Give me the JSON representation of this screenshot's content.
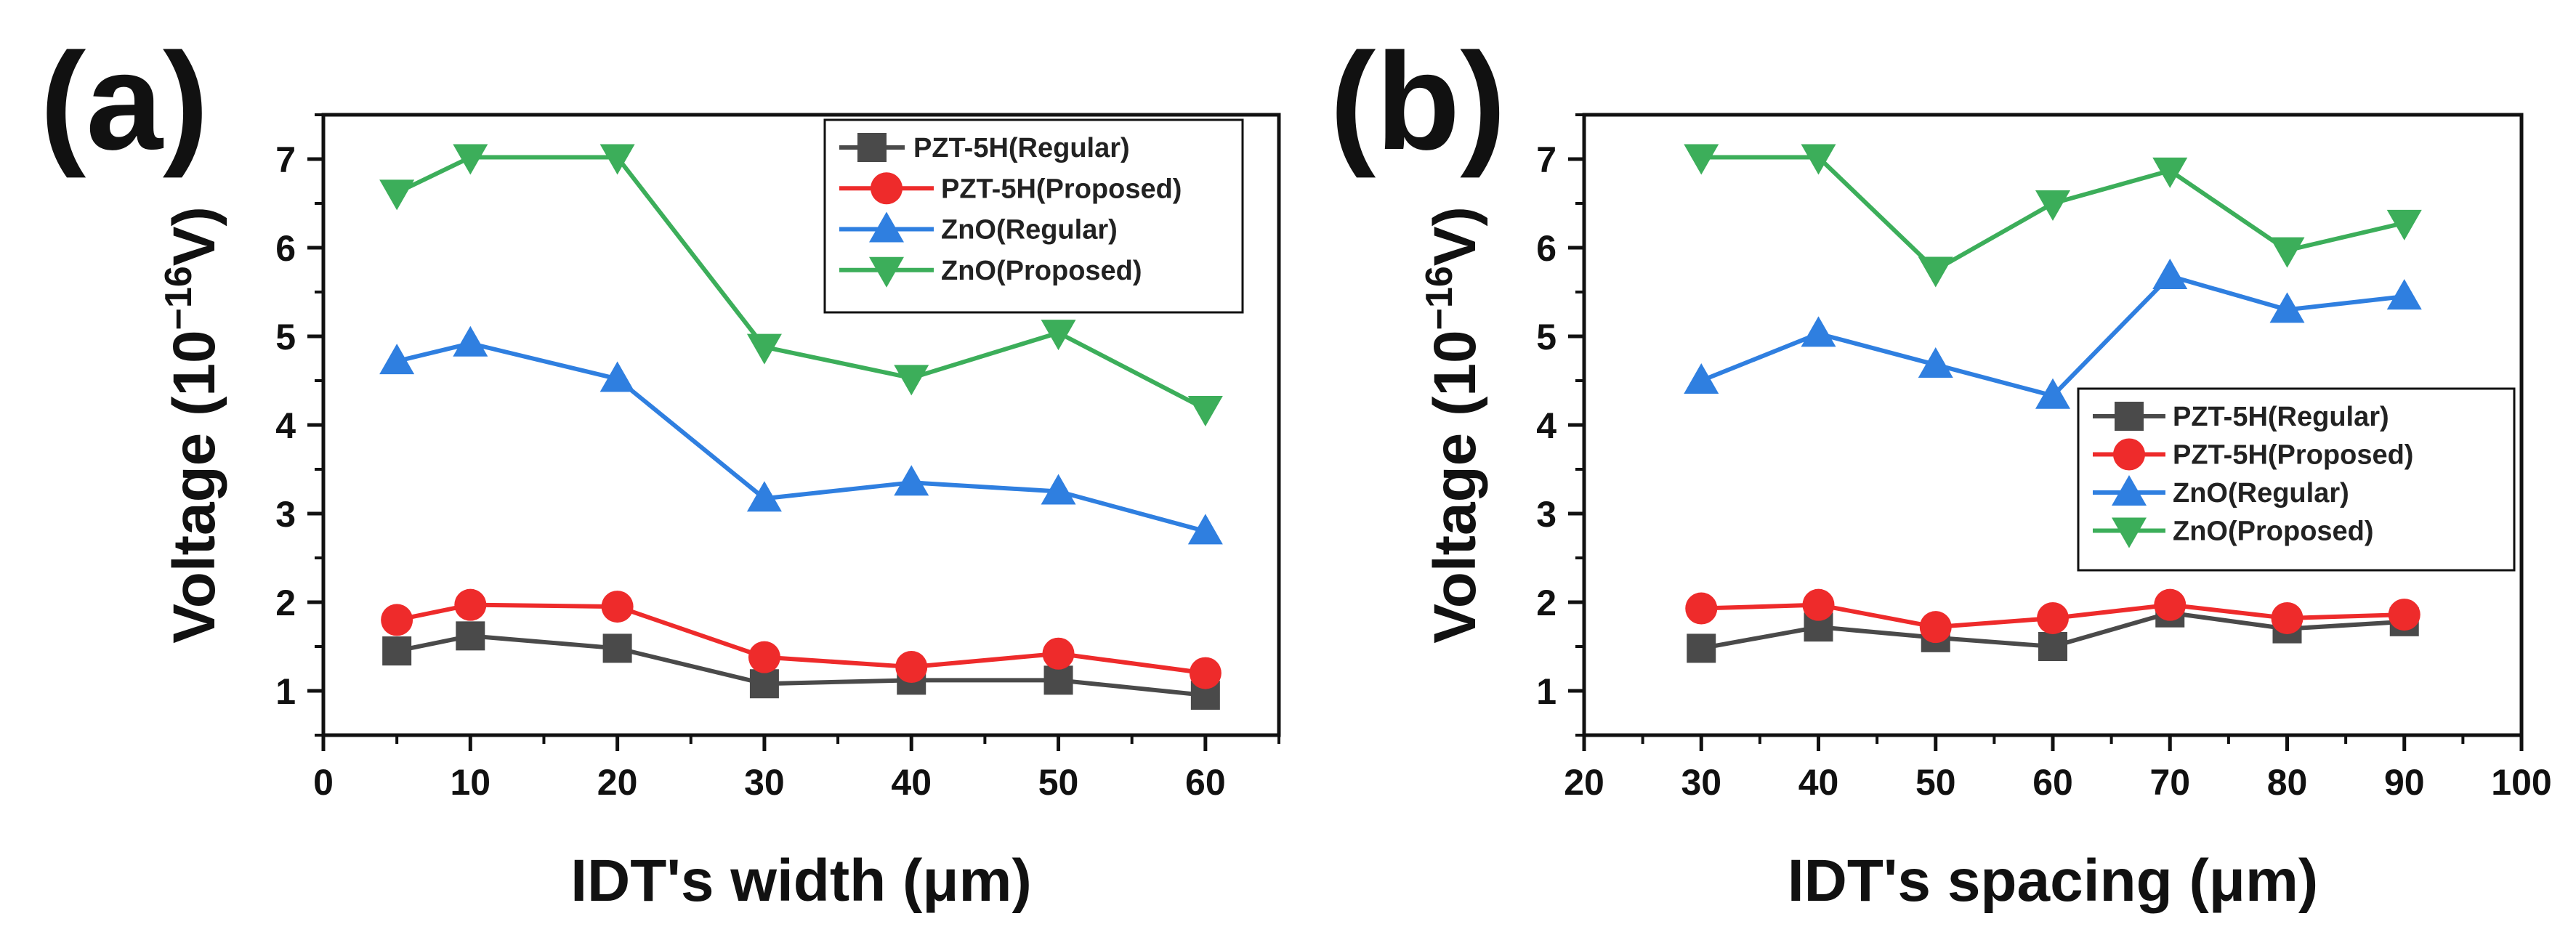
{
  "chart_data": [
    {
      "type": "line",
      "panel_label": "(a)",
      "xlabel": "IDT's width (μm)",
      "ylabel_main": "Voltage (10",
      "ylabel_exp": "−16",
      "ylabel_unit": "V)",
      "xlim": [
        0,
        65
      ],
      "ylim": [
        0.5,
        7.5
      ],
      "xticks": [
        0,
        10,
        20,
        30,
        40,
        50,
        60
      ],
      "yticks": [
        1,
        2,
        3,
        4,
        5,
        6,
        7
      ],
      "legend_position": "top-right",
      "x": [
        5,
        10,
        20,
        30,
        40,
        50,
        60
      ],
      "series": [
        {
          "name": "PZT-5H(Regular)",
          "color": "#4a4a4a",
          "marker": "square",
          "values": [
            1.45,
            1.62,
            1.48,
            1.08,
            1.12,
            1.12,
            0.95
          ]
        },
        {
          "name": "PZT-5H(Proposed)",
          "color": "#ee2b2b",
          "marker": "circle",
          "values": [
            1.8,
            1.97,
            1.95,
            1.38,
            1.27,
            1.42,
            1.2
          ]
        },
        {
          "name": "ZnO(Regular)",
          "color": "#2f7fe0",
          "marker": "triangle-up",
          "values": [
            4.72,
            4.92,
            4.52,
            3.17,
            3.35,
            3.25,
            2.8
          ]
        },
        {
          "name": "ZnO(Proposed)",
          "color": "#3cae5a",
          "marker": "triangle-down",
          "values": [
            6.62,
            7.02,
            7.02,
            4.88,
            4.53,
            5.04,
            4.18
          ]
        }
      ]
    },
    {
      "type": "line",
      "panel_label": "(b)",
      "xlabel": "IDT's spacing (μm)",
      "ylabel_main": "Voltage (10",
      "ylabel_exp": "−16",
      "ylabel_unit": "V)",
      "xlim": [
        20,
        100
      ],
      "ylim": [
        0.5,
        7.5
      ],
      "xticks": [
        20,
        30,
        40,
        50,
        60,
        70,
        80,
        90,
        100
      ],
      "yticks": [
        1,
        2,
        3,
        4,
        5,
        6,
        7
      ],
      "legend_position": "center-right",
      "x": [
        30,
        40,
        50,
        60,
        70,
        80,
        90
      ],
      "series": [
        {
          "name": "PZT-5H(Regular)",
          "color": "#4a4a4a",
          "marker": "square",
          "values": [
            1.48,
            1.72,
            1.6,
            1.5,
            1.88,
            1.7,
            1.78
          ]
        },
        {
          "name": "PZT-5H(Proposed)",
          "color": "#ee2b2b",
          "marker": "circle",
          "values": [
            1.93,
            1.97,
            1.72,
            1.82,
            1.97,
            1.82,
            1.86
          ]
        },
        {
          "name": "ZnO(Regular)",
          "color": "#2f7fe0",
          "marker": "triangle-up",
          "values": [
            4.5,
            5.03,
            4.68,
            4.33,
            5.68,
            5.3,
            5.45
          ]
        },
        {
          "name": "ZnO(Proposed)",
          "color": "#3cae5a",
          "marker": "triangle-down",
          "values": [
            7.02,
            7.02,
            5.75,
            6.5,
            6.87,
            5.97,
            6.28
          ]
        }
      ]
    }
  ]
}
